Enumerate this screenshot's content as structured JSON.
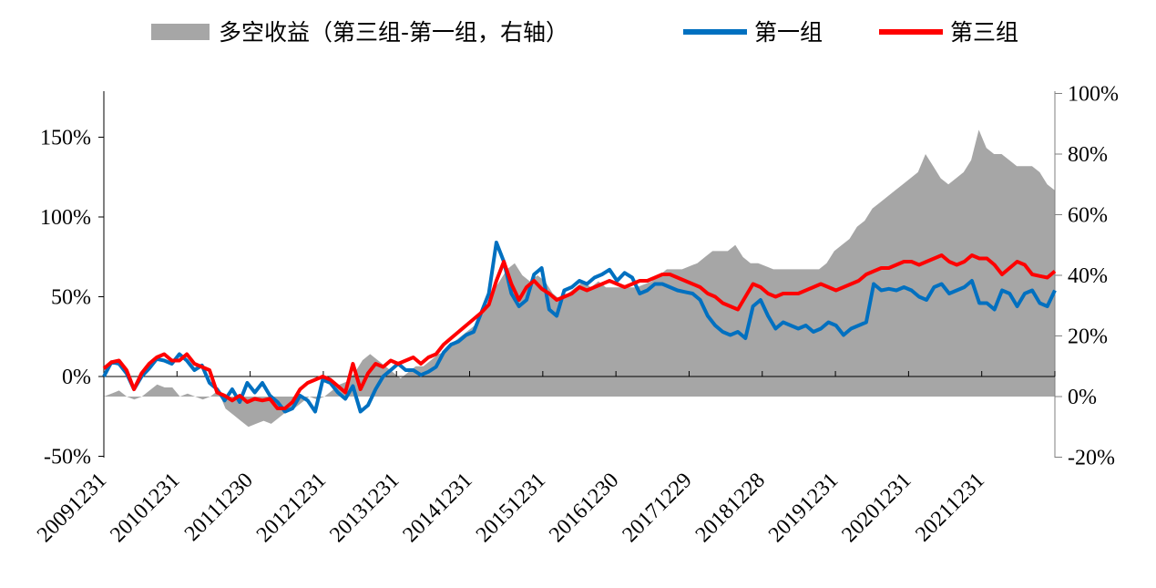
{
  "chart_data": {
    "type": "line",
    "legend": {
      "placement": "top",
      "entries": [
        {
          "key": "spread",
          "label": "多空收益（第三组-第一组，右轴）"
        },
        {
          "key": "g1",
          "label": "第一组"
        },
        {
          "key": "g3",
          "label": "第三组"
        }
      ]
    },
    "x_tick_labels": [
      "20091231",
      "20101231",
      "20111230",
      "20121231",
      "20131231",
      "20141231",
      "20151231",
      "20161230",
      "20171229",
      "20181228",
      "20191231",
      "20201231",
      "20211231"
    ],
    "left_axis": {
      "ticks": [
        "150%",
        "100%",
        "50%",
        "0%",
        "-50%"
      ],
      "tick_values": [
        150,
        100,
        50,
        0,
        -50
      ],
      "range": [
        -50,
        180
      ]
    },
    "right_axis": {
      "ticks": [
        "100%",
        "80%",
        "60%",
        "40%",
        "20%",
        "0%",
        "-20%"
      ],
      "tick_values": [
        100,
        80,
        60,
        40,
        20,
        0,
        -20
      ],
      "range": [
        -20,
        100
      ]
    },
    "colors": {
      "spread": "#a6a6a6",
      "g1": "#0070c0",
      "g3": "#ff0000"
    },
    "series": [
      {
        "key": "g1",
        "name": "第一组",
        "axis": "left",
        "values": [
          0,
          9,
          8,
          2,
          -8,
          0,
          5,
          11,
          10,
          8,
          14,
          10,
          4,
          7,
          -4,
          -8,
          -15,
          -8,
          -16,
          -4,
          -10,
          -4,
          -12,
          -16,
          -22,
          -20,
          -12,
          -15,
          -22,
          -2,
          -4,
          -10,
          -14,
          -6,
          -22,
          -18,
          -8,
          0,
          4,
          8,
          4,
          4,
          1,
          3,
          6,
          15,
          20,
          22,
          26,
          28,
          40,
          52,
          84,
          72,
          52,
          44,
          48,
          64,
          68,
          42,
          38,
          54,
          56,
          60,
          58,
          62,
          64,
          67,
          60,
          65,
          62,
          52,
          54,
          58,
          58,
          56,
          54,
          53,
          52,
          48,
          38,
          32,
          28,
          26,
          28,
          24,
          44,
          48,
          38,
          30,
          34,
          32,
          30,
          32,
          28,
          30,
          34,
          32,
          26,
          30,
          32,
          34,
          58,
          54,
          55,
          54,
          56,
          54,
          50,
          48,
          56,
          58,
          52,
          54,
          56,
          60,
          46,
          46,
          42,
          54,
          52,
          44,
          52,
          54,
          46,
          44,
          54
        ]
      },
      {
        "key": "g3",
        "name": "第三组",
        "axis": "left",
        "values": [
          5,
          9,
          10,
          4,
          -8,
          2,
          8,
          12,
          14,
          10,
          10,
          14,
          8,
          6,
          4,
          -10,
          -12,
          -15,
          -12,
          -16,
          -14,
          -15,
          -14,
          -20,
          -20,
          -16,
          -8,
          -4,
          -2,
          0,
          -2,
          -6,
          -10,
          8,
          -8,
          2,
          8,
          6,
          10,
          8,
          10,
          12,
          8,
          12,
          14,
          20,
          24,
          28,
          32,
          36,
          40,
          45,
          60,
          72,
          58,
          48,
          56,
          60,
          55,
          52,
          48,
          50,
          52,
          56,
          54,
          56,
          58,
          60,
          58,
          56,
          58,
          60,
          60,
          62,
          64,
          64,
          62,
          60,
          58,
          56,
          52,
          50,
          46,
          44,
          42,
          50,
          58,
          56,
          52,
          50,
          52,
          52,
          52,
          54,
          56,
          58,
          56,
          54,
          56,
          58,
          60,
          64,
          66,
          68,
          68,
          70,
          72,
          72,
          70,
          72,
          74,
          76,
          72,
          70,
          72,
          76,
          74,
          74,
          70,
          64,
          68,
          72,
          70,
          64,
          63,
          62,
          66
        ]
      },
      {
        "key": "spread",
        "name": "多空收益（第三组-第一组，右轴）",
        "axis": "right",
        "values": [
          0,
          1,
          2,
          0,
          -1,
          0,
          2,
          4,
          3,
          3,
          0,
          1,
          0,
          -1,
          0,
          2,
          -4,
          -6,
          -8,
          -10,
          -9,
          -8,
          -9,
          -7,
          -5,
          -4,
          -2,
          0,
          -1,
          0,
          2,
          4,
          5,
          8,
          12,
          14,
          12,
          10,
          8,
          6,
          8,
          10,
          10,
          12,
          14,
          15,
          18,
          20,
          22,
          24,
          28,
          34,
          38,
          42,
          44,
          40,
          38,
          40,
          38,
          34,
          32,
          34,
          36,
          38,
          36,
          38,
          36,
          36,
          36,
          36,
          36,
          37,
          38,
          40,
          42,
          42,
          42,
          43,
          44,
          46,
          48,
          48,
          48,
          50,
          46,
          44,
          44,
          43,
          42,
          42,
          42,
          42,
          42,
          42,
          42,
          44,
          48,
          50,
          52,
          56,
          58,
          62,
          64,
          66,
          68,
          70,
          72,
          74,
          80,
          76,
          72,
          70,
          72,
          74,
          78,
          88,
          82,
          80,
          80,
          78,
          76,
          76,
          76,
          74,
          70,
          68
        ]
      }
    ]
  }
}
